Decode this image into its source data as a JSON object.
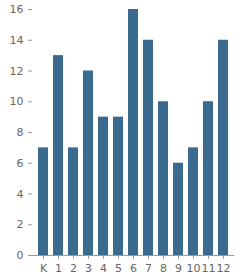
{
  "chart_data": {
    "type": "bar",
    "categories": [
      "K",
      "1",
      "2",
      "3",
      "4",
      "5",
      "6",
      "7",
      "8",
      "9",
      "10",
      "11",
      "12"
    ],
    "values": [
      7,
      13,
      7,
      12,
      9,
      9,
      16,
      14,
      10,
      6,
      7,
      10,
      14
    ],
    "color": "#3b6a8f",
    "ylim": [
      0,
      16
    ],
    "yticks": [
      0,
      2,
      4,
      6,
      8,
      10,
      12,
      14,
      16
    ],
    "grid": false
  }
}
